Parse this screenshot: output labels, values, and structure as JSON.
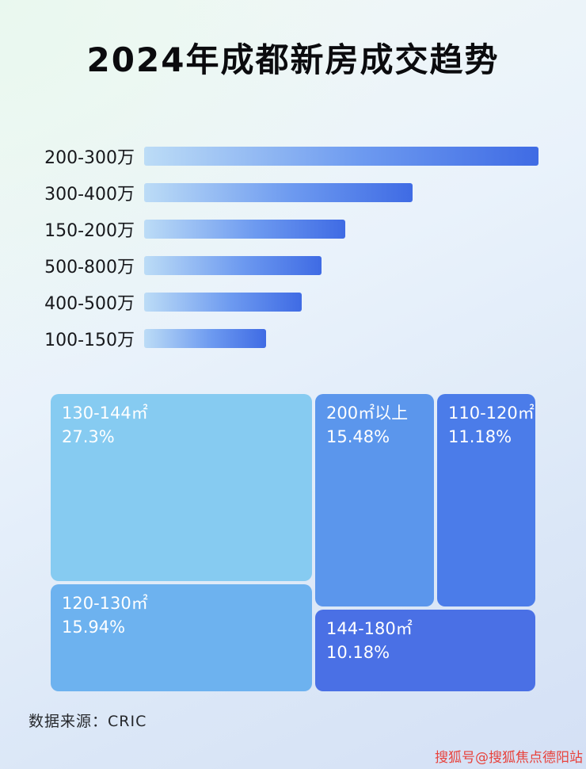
{
  "page": {
    "title": "2024年成都新房成交趋势",
    "footer_source": "数据来源：CRIC",
    "watermark": "搜狐号@搜狐焦点德阳站"
  },
  "colors": {
    "bar_gradient_start": "#bcdcf6",
    "bar_gradient_mid": "#6d9af0",
    "bar_gradient_end": "#3f6be4",
    "treemap": [
      "#86cbf1",
      "#5b96ec",
      "#4b7ce9",
      "#6db2ef",
      "#4a70e5"
    ]
  },
  "chart_data": [
    {
      "type": "bar",
      "orientation": "horizontal",
      "title": "2024年成都新房成交趋势",
      "categories": [
        "200-300万",
        "300-400万",
        "150-200万",
        "500-800万",
        "400-500万",
        "100-150万"
      ],
      "values": [
        100,
        68,
        51,
        45,
        40,
        31
      ],
      "value_note": "无数值轴，长度为相对最长条的估算百分比",
      "xlabel": "",
      "ylabel": "",
      "grid": false,
      "legend": false
    },
    {
      "type": "treemap",
      "items": [
        {
          "label": "130-144㎡",
          "percent": "27.3%",
          "value": 27.3
        },
        {
          "label": "200㎡以上",
          "percent": "15.48%",
          "value": 15.48
        },
        {
          "label": "110-120㎡",
          "percent": "11.18%",
          "value": 11.18
        },
        {
          "label": "120-130㎡",
          "percent": "15.94%",
          "value": 15.94
        },
        {
          "label": "144-180㎡",
          "percent": "10.18%",
          "value": 10.18
        }
      ]
    }
  ]
}
